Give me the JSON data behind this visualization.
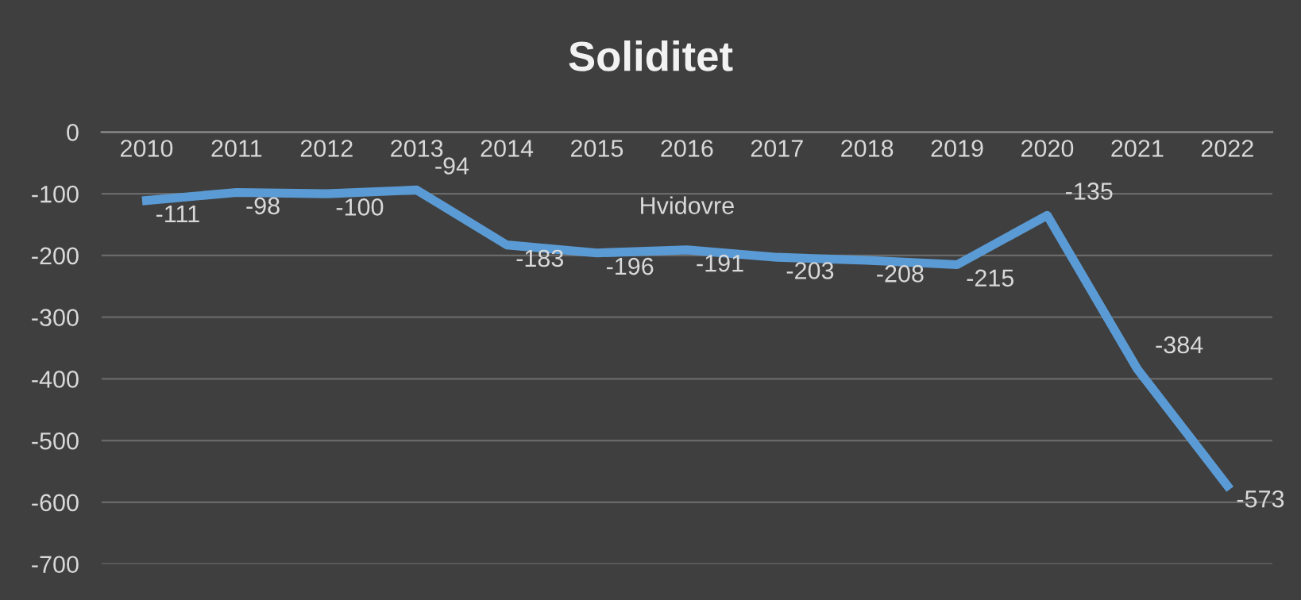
{
  "chart_data": {
    "type": "line",
    "title": "Soliditet",
    "categories": [
      "2010",
      "2011",
      "2012",
      "2013",
      "2014",
      "2015",
      "2016",
      "2017",
      "2018",
      "2019",
      "2020",
      "2021",
      "2022"
    ],
    "series": [
      {
        "name": "Hvidovre",
        "color": "#5b9bd5",
        "values": [
          -111,
          -98,
          -100,
          -94,
          -183,
          -196,
          -191,
          -203,
          -208,
          -215,
          -135,
          -384,
          -573
        ]
      }
    ],
    "ylim": [
      -700,
      0
    ],
    "yticks": [
      0,
      -100,
      -200,
      -300,
      -400,
      -500,
      -600,
      -700
    ],
    "grid": "y",
    "data_labels": true,
    "marker": "none",
    "line_style": "solid"
  }
}
